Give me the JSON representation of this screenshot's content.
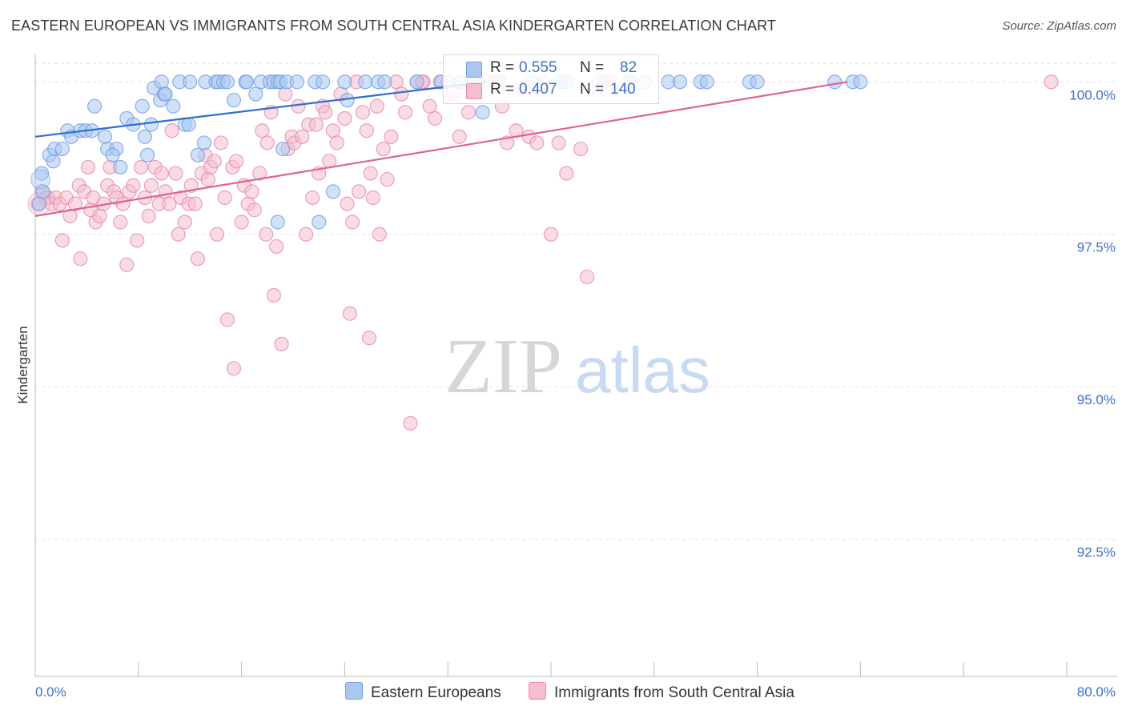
{
  "title": "EASTERN EUROPEAN VS IMMIGRANTS FROM SOUTH CENTRAL ASIA KINDERGARTEN CORRELATION CHART",
  "source": "Source: ZipAtlas.com",
  "watermark": {
    "zip": "ZIP",
    "atlas": "atlas"
  },
  "colors": {
    "blue": "#6fa0e6",
    "blue_fill": "#aac7f0",
    "blue_line": "#2f6fd0",
    "pink": "#e889aa",
    "pink_fill": "#f4bdd0",
    "pink_line": "#e0648e",
    "axis_text": "#3f6fc9"
  },
  "legend": {
    "blue": {
      "r_label": "R = ",
      "r_value": "0.555",
      "n_label": "N = ",
      "n_value": "82"
    },
    "pink": {
      "r_label": "R = ",
      "r_value": "0.407",
      "n_label": "N = ",
      "n_value": "140"
    }
  },
  "bottom_legend": {
    "blue": "Eastern Europeans",
    "pink": "Immigrants from South Central Asia"
  },
  "chart_data": {
    "type": "scatter",
    "ylabel": "Kindergarten",
    "xlim": [
      0,
      80
    ],
    "ylim": [
      90.25,
      100.45
    ],
    "x_tick_labels": [
      "0.0%",
      "80.0%"
    ],
    "y_ticks": [
      {
        "v": 100,
        "label": "100.0%"
      },
      {
        "v": 97.5,
        "label": "97.5%"
      },
      {
        "v": 95,
        "label": "95.0%"
      },
      {
        "v": 92.5,
        "label": "92.5%"
      }
    ],
    "grid": true,
    "series": [
      {
        "name": "Eastern Europeans",
        "trend": {
          "x": [
            0.0,
            35.0
          ],
          "y": [
            99.1,
            100.0
          ]
        },
        "points": [
          [
            0.3,
            98.0
          ],
          [
            0.6,
            98.2
          ],
          [
            0.5,
            98.5
          ],
          [
            1.1,
            98.8
          ],
          [
            1.4,
            98.7
          ],
          [
            1.5,
            98.9
          ],
          [
            2.1,
            98.9
          ],
          [
            2.5,
            99.2
          ],
          [
            2.8,
            99.1
          ],
          [
            3.5,
            99.2
          ],
          [
            3.9,
            99.2
          ],
          [
            4.4,
            99.2
          ],
          [
            4.6,
            99.6
          ],
          [
            5.4,
            99.1
          ],
          [
            5.6,
            98.9
          ],
          [
            6.3,
            98.9
          ],
          [
            6.0,
            98.8
          ],
          [
            6.6,
            98.6
          ],
          [
            7.1,
            99.4
          ],
          [
            7.6,
            99.3
          ],
          [
            8.3,
            99.6
          ],
          [
            8.7,
            98.8
          ],
          [
            8.5,
            99.1
          ],
          [
            9.0,
            99.3
          ],
          [
            9.2,
            99.9
          ],
          [
            9.7,
            99.7
          ],
          [
            9.8,
            100
          ],
          [
            10.0,
            99.8
          ],
          [
            10.1,
            99.8
          ],
          [
            10.7,
            99.6
          ],
          [
            11.6,
            99.3
          ],
          [
            11.9,
            99.3
          ],
          [
            11.2,
            100
          ],
          [
            12.0,
            100
          ],
          [
            12.6,
            98.8
          ],
          [
            13.1,
            99.0
          ],
          [
            13.2,
            100
          ],
          [
            14.0,
            100
          ],
          [
            14.2,
            100
          ],
          [
            14.6,
            100
          ],
          [
            14.9,
            100
          ],
          [
            15.4,
            99.7
          ],
          [
            16.3,
            100
          ],
          [
            16.4,
            100
          ],
          [
            17.1,
            99.8
          ],
          [
            17.5,
            100
          ],
          [
            18.2,
            100
          ],
          [
            18.5,
            100
          ],
          [
            18.8,
            100
          ],
          [
            19.0,
            100
          ],
          [
            19.2,
            98.9
          ],
          [
            19.5,
            100
          ],
          [
            20.3,
            100
          ],
          [
            21.7,
            100
          ],
          [
            22.3,
            100
          ],
          [
            22.0,
            97.7
          ],
          [
            23.1,
            98.2
          ],
          [
            24.0,
            100
          ],
          [
            24.2,
            99.7
          ],
          [
            25.6,
            100
          ],
          [
            26.6,
            100
          ],
          [
            27.1,
            100
          ],
          [
            29.6,
            100
          ],
          [
            31.5,
            100
          ],
          [
            33.0,
            100
          ],
          [
            34.7,
            99.5
          ],
          [
            36.0,
            100
          ],
          [
            38.6,
            100
          ],
          [
            40.8,
            100
          ],
          [
            41.2,
            100
          ],
          [
            43.7,
            100
          ],
          [
            46.2,
            100
          ],
          [
            49.1,
            100
          ],
          [
            50.0,
            100
          ],
          [
            51.6,
            100
          ],
          [
            52.1,
            100
          ],
          [
            55.4,
            100
          ],
          [
            56.0,
            100
          ],
          [
            62.0,
            100
          ],
          [
            63.4,
            100
          ],
          [
            64.0,
            100
          ],
          [
            18.8,
            97.7
          ]
        ]
      },
      {
        "name": "Immigrants from South Central Asia",
        "trend": {
          "x": [
            0.0,
            63.0
          ],
          "y": [
            97.8,
            100.0
          ]
        },
        "points": [
          [
            0.2,
            98.0
          ],
          [
            0.5,
            98.2
          ],
          [
            0.8,
            98.1
          ],
          [
            1.0,
            98.1
          ],
          [
            1.3,
            98.0
          ],
          [
            1.6,
            98.1
          ],
          [
            1.9,
            98.0
          ],
          [
            2.1,
            97.4
          ],
          [
            2.4,
            98.1
          ],
          [
            2.7,
            97.8
          ],
          [
            3.1,
            98.0
          ],
          [
            3.4,
            98.3
          ],
          [
            3.5,
            97.1
          ],
          [
            3.8,
            98.2
          ],
          [
            4.1,
            98.6
          ],
          [
            4.3,
            97.9
          ],
          [
            4.5,
            98.1
          ],
          [
            4.7,
            97.7
          ],
          [
            5.0,
            97.8
          ],
          [
            5.3,
            98.0
          ],
          [
            5.6,
            98.3
          ],
          [
            5.8,
            98.6
          ],
          [
            6.1,
            98.2
          ],
          [
            6.3,
            98.1
          ],
          [
            6.6,
            97.7
          ],
          [
            6.8,
            98.0
          ],
          [
            7.1,
            97.0
          ],
          [
            7.3,
            98.2
          ],
          [
            7.6,
            98.3
          ],
          [
            7.9,
            97.4
          ],
          [
            8.2,
            98.6
          ],
          [
            8.5,
            98.1
          ],
          [
            8.8,
            97.8
          ],
          [
            9.0,
            98.3
          ],
          [
            9.3,
            98.6
          ],
          [
            9.6,
            98.0
          ],
          [
            9.8,
            98.5
          ],
          [
            10.1,
            98.2
          ],
          [
            10.4,
            98.0
          ],
          [
            10.6,
            99.2
          ],
          [
            10.9,
            98.5
          ],
          [
            11.1,
            97.5
          ],
          [
            11.3,
            98.1
          ],
          [
            11.6,
            97.7
          ],
          [
            11.9,
            98.0
          ],
          [
            12.1,
            98.3
          ],
          [
            12.4,
            98.0
          ],
          [
            12.6,
            97.1
          ],
          [
            12.9,
            98.5
          ],
          [
            13.2,
            98.8
          ],
          [
            13.4,
            98.4
          ],
          [
            13.6,
            98.6
          ],
          [
            13.9,
            98.7
          ],
          [
            14.1,
            97.5
          ],
          [
            14.4,
            99.0
          ],
          [
            14.7,
            98.1
          ],
          [
            14.9,
            96.1
          ],
          [
            15.3,
            98.6
          ],
          [
            15.6,
            98.7
          ],
          [
            15.4,
            95.3
          ],
          [
            16.0,
            97.7
          ],
          [
            16.2,
            98.3
          ],
          [
            16.5,
            98.0
          ],
          [
            16.8,
            98.2
          ],
          [
            17.0,
            97.9
          ],
          [
            17.4,
            98.5
          ],
          [
            17.6,
            99.2
          ],
          [
            17.9,
            97.5
          ],
          [
            18.0,
            99.0
          ],
          [
            18.3,
            99.5
          ],
          [
            18.5,
            96.5
          ],
          [
            18.7,
            97.3
          ],
          [
            19.1,
            95.7
          ],
          [
            19.4,
            99.8
          ],
          [
            19.6,
            98.9
          ],
          [
            19.9,
            99.1
          ],
          [
            20.1,
            99.0
          ],
          [
            20.4,
            99.6
          ],
          [
            20.7,
            99.1
          ],
          [
            21.0,
            97.5
          ],
          [
            21.2,
            99.3
          ],
          [
            21.5,
            98.1
          ],
          [
            21.8,
            99.3
          ],
          [
            22.0,
            98.5
          ],
          [
            22.3,
            99.6
          ],
          [
            22.5,
            99.5
          ],
          [
            22.8,
            98.7
          ],
          [
            23.1,
            99.2
          ],
          [
            23.4,
            99.0
          ],
          [
            23.7,
            99.8
          ],
          [
            24.0,
            99.4
          ],
          [
            24.2,
            98.0
          ],
          [
            24.4,
            96.2
          ],
          [
            24.6,
            97.7
          ],
          [
            24.9,
            100
          ],
          [
            25.1,
            98.2
          ],
          [
            25.4,
            99.5
          ],
          [
            25.7,
            99.2
          ],
          [
            26.0,
            98.5
          ],
          [
            26.2,
            98.1
          ],
          [
            26.5,
            99.6
          ],
          [
            26.7,
            97.5
          ],
          [
            27.0,
            98.9
          ],
          [
            27.3,
            98.4
          ],
          [
            27.6,
            99.1
          ],
          [
            28.0,
            100
          ],
          [
            28.4,
            99.8
          ],
          [
            28.7,
            99.5
          ],
          [
            29.1,
            94.4
          ],
          [
            29.6,
            100
          ],
          [
            30.1,
            100
          ],
          [
            30.6,
            99.6
          ],
          [
            31.0,
            99.4
          ],
          [
            31.4,
            100
          ],
          [
            32.0,
            100
          ],
          [
            32.4,
            99.8
          ],
          [
            32.9,
            99.1
          ],
          [
            33.6,
            99.5
          ],
          [
            34.4,
            100
          ],
          [
            35.0,
            100
          ],
          [
            35.7,
            100
          ],
          [
            36.2,
            99.6
          ],
          [
            36.6,
            99.0
          ],
          [
            37.3,
            99.2
          ],
          [
            37.8,
            99.9
          ],
          [
            38.3,
            99.1
          ],
          [
            38.9,
            99.0
          ],
          [
            39.4,
            100
          ],
          [
            40.0,
            97.5
          ],
          [
            40.6,
            99.0
          ],
          [
            41.2,
            98.5
          ],
          [
            42.3,
            98.9
          ],
          [
            42.8,
            96.8
          ],
          [
            44.2,
            100
          ],
          [
            44.8,
            100
          ],
          [
            46.0,
            100
          ],
          [
            47.3,
            100
          ],
          [
            25.9,
            95.8
          ],
          [
            30.0,
            100
          ],
          [
            78.8,
            100
          ]
        ]
      }
    ]
  }
}
